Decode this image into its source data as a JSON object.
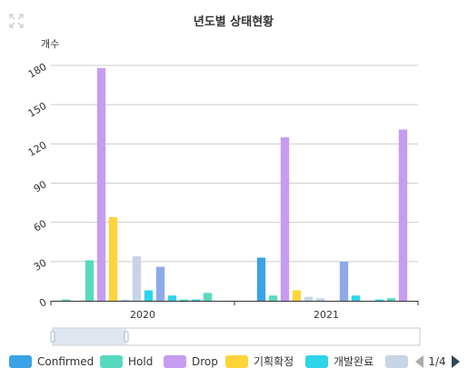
{
  "colors": {
    "text_dark": "#333333",
    "text_mid": "#555555",
    "grid": "#cccccc",
    "axis": "#333333",
    "zoom_fill": "#d2dbe9",
    "zoom_border": "#c8c8c8",
    "zoom_handle": "#a7b7cc",
    "pager_active": "#2f4554",
    "pager_inactive": "#aaaaaa"
  },
  "toolbar": {
    "expand_icon": "expand-icon"
  },
  "legend": {
    "page": "1/4"
  },
  "chart_data": {
    "type": "bar",
    "title": "년도별 상태현황",
    "ylabel": "개수",
    "xlabel": "",
    "ylim": [
      0,
      180
    ],
    "yticks": [
      0,
      30,
      60,
      90,
      120,
      150,
      180
    ],
    "grid": true,
    "categories": [
      "2020",
      "2021"
    ],
    "legend_position": "bottom",
    "series": [
      {
        "name": "",
        "color": "#58d9bd",
        "values": [
          1,
          0
        ]
      },
      {
        "name": "Confirmed",
        "color": "#3ba2e5",
        "values": [
          0,
          33
        ]
      },
      {
        "name": "Hold",
        "color": "#58d9bd",
        "values": [
          31,
          4
        ]
      },
      {
        "name": "Drop",
        "color": "#c69cf0",
        "values": [
          178,
          125
        ]
      },
      {
        "name": "기획확정",
        "color": "#ffd43b",
        "values": [
          64,
          8
        ]
      },
      {
        "name": "개발완료",
        "color": "#c6d4e6",
        "values": [
          1,
          3
        ]
      },
      {
        "name": "",
        "color": "#c6d4e6",
        "values": [
          34,
          2
        ]
      },
      {
        "name": "",
        "color": "#2ed4ea",
        "values": [
          8,
          0
        ]
      },
      {
        "name": "",
        "color": "#8ea9e8",
        "values": [
          26,
          30
        ]
      },
      {
        "name": "",
        "color": "#2ed4ea",
        "values": [
          4,
          4
        ]
      },
      {
        "name": "",
        "color": "#58d9bd",
        "values": [
          1,
          0
        ]
      },
      {
        "name": "",
        "color": "#2ed4ea",
        "values": [
          1,
          1
        ]
      },
      {
        "name": "",
        "color": "#58d9bd",
        "values": [
          6,
          2
        ]
      },
      {
        "name": "",
        "color": "#c69cf0",
        "values": [
          0,
          131
        ]
      }
    ],
    "legend_entries": [
      {
        "name": "Confirmed",
        "color": "#3ba2e5"
      },
      {
        "name": "Hold",
        "color": "#58d9bd"
      },
      {
        "name": "Drop",
        "color": "#c69cf0"
      },
      {
        "name": "기획확정",
        "color": "#ffd43b"
      },
      {
        "name": "개발완료",
        "color": "#2ed4ea"
      },
      {
        "name": "",
        "color": "#c6d4e6"
      }
    ],
    "datazoom": {
      "start": 0,
      "end": 20
    }
  }
}
